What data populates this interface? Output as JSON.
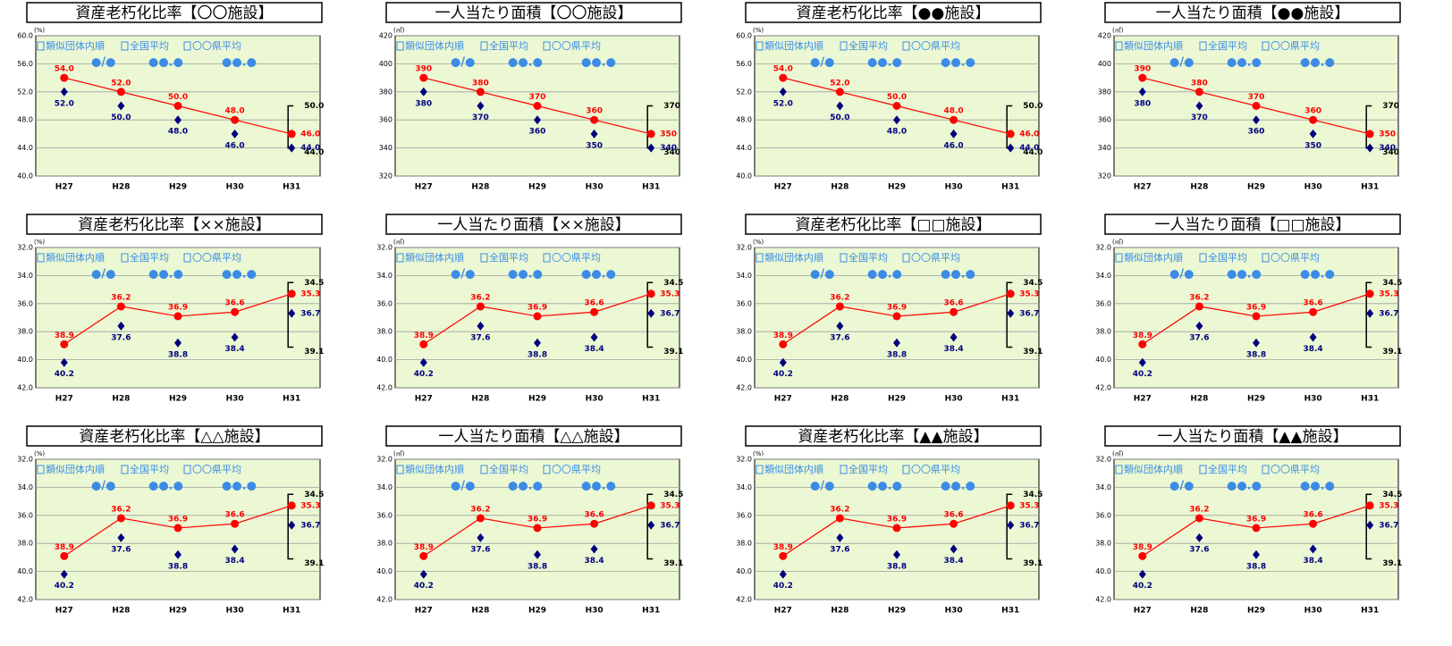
{
  "chart_data": [
    {
      "type": "line",
      "title": "資産老朽化比率【〇〇施設】",
      "unit": "(%)",
      "categories": [
        "H27",
        "H28",
        "H29",
        "H30",
        "H31"
      ],
      "ylim": [
        40,
        60
      ],
      "inverted": false,
      "yticks": [
        {
          "value": 40,
          "label": "40.0"
        },
        {
          "value": 44,
          "label": "44.0"
        },
        {
          "value": 48,
          "label": "48.0"
        },
        {
          "value": 52,
          "label": "52.0"
        },
        {
          "value": 56,
          "label": "56.0"
        },
        {
          "value": 60,
          "label": "60.0"
        }
      ],
      "grid": true,
      "legend": [
        {
          "label": "類似団体内順",
          "value": "●/●"
        },
        {
          "label": "全国平均",
          "value": "●●.●"
        },
        {
          "label": "〇〇県平均",
          "value": "●●.●"
        }
      ],
      "series": [
        {
          "color": "#ff0000",
          "values": [
            54,
            52,
            50,
            48,
            46
          ],
          "value_labels": [
            "54.0",
            "52.0",
            "50.0",
            "48.0",
            "46.0"
          ]
        },
        {
          "color": "#000080",
          "values": [
            52,
            50,
            48,
            46,
            44
          ],
          "value_labels": [
            "52.0",
            "50.0",
            "48.0",
            "46.0",
            "44.0"
          ]
        }
      ],
      "range": {
        "values": [
          50,
          44
        ],
        "value_labels": [
          "50.0",
          "44.0"
        ]
      }
    },
    {
      "type": "line",
      "title": "一人当たり面積【〇〇施設】",
      "unit": "(㎡)",
      "categories": [
        "H27",
        "H28",
        "H29",
        "H30",
        "H31"
      ],
      "ylim": [
        320,
        420
      ],
      "inverted": false,
      "yticks": [
        320,
        340,
        360,
        380,
        400,
        420
      ],
      "grid": true,
      "legend": [
        {
          "label": "類似団体内順",
          "value": "●/●"
        },
        {
          "label": "全国平均",
          "value": "●●.●"
        },
        {
          "label": "〇〇県平均",
          "value": "●●.●"
        }
      ],
      "series": [
        {
          "color": "#ff0000",
          "values": [
            390,
            380,
            370,
            360,
            350
          ]
        },
        {
          "color": "#000080",
          "values": [
            380,
            370,
            360,
            350,
            340
          ]
        }
      ],
      "range": {
        "values": [
          370,
          340
        ]
      }
    },
    {
      "type": "line",
      "title": "資産老朽化比率【●●施設】",
      "unit": "(%)",
      "categories": [
        "H27",
        "H28",
        "H29",
        "H30",
        "H31"
      ],
      "ylim": [
        40,
        60
      ],
      "inverted": false,
      "yticks": [
        {
          "value": 40,
          "label": "40.0"
        },
        {
          "value": 44,
          "label": "44.0"
        },
        {
          "value": 48,
          "label": "48.0"
        },
        {
          "value": 52,
          "label": "52.0"
        },
        {
          "value": 56,
          "label": "56.0"
        },
        {
          "value": 60,
          "label": "60.0"
        }
      ],
      "grid": true,
      "legend": [
        {
          "label": "類似団体内順",
          "value": "●/●"
        },
        {
          "label": "全国平均",
          "value": "●●.●"
        },
        {
          "label": "〇〇県平均",
          "value": "●●.●"
        }
      ],
      "series": [
        {
          "color": "#ff0000",
          "values": [
            54,
            52,
            50,
            48,
            46
          ],
          "value_labels": [
            "54.0",
            "52.0",
            "50.0",
            "48.0",
            "46.0"
          ]
        },
        {
          "color": "#000080",
          "values": [
            52,
            50,
            48,
            46,
            44
          ],
          "value_labels": [
            "52.0",
            "50.0",
            "48.0",
            "46.0",
            "44.0"
          ]
        }
      ],
      "range": {
        "values": [
          50,
          44
        ],
        "value_labels": [
          "50.0",
          "44.0"
        ]
      }
    },
    {
      "type": "line",
      "title": "一人当たり面積【●●施設】",
      "unit": "(㎡)",
      "categories": [
        "H27",
        "H28",
        "H29",
        "H30",
        "H31"
      ],
      "ylim": [
        320,
        420
      ],
      "inverted": false,
      "yticks": [
        320,
        340,
        360,
        380,
        400,
        420
      ],
      "grid": true,
      "legend": [
        {
          "label": "類似団体内順",
          "value": "●/●"
        },
        {
          "label": "全国平均",
          "value": "●●.●"
        },
        {
          "label": "〇〇県平均",
          "value": "●●.●"
        }
      ],
      "series": [
        {
          "color": "#ff0000",
          "values": [
            390,
            380,
            370,
            360,
            350
          ]
        },
        {
          "color": "#000080",
          "values": [
            380,
            370,
            360,
            350,
            340
          ]
        }
      ],
      "range": {
        "values": [
          370,
          340
        ]
      }
    },
    {
      "type": "line",
      "title": "資産老朽化比率【××施設】",
      "unit": "(%)",
      "categories": [
        "H27",
        "H28",
        "H29",
        "H30",
        "H31"
      ],
      "ylim": [
        32,
        42
      ],
      "inverted": true,
      "yticks": [
        {
          "value": 32,
          "label": "32.0"
        },
        {
          "value": 34,
          "label": "34.0"
        },
        {
          "value": 36,
          "label": "36.0"
        },
        {
          "value": 38,
          "label": "38.0"
        },
        {
          "value": 40,
          "label": "40.0"
        },
        {
          "value": 42,
          "label": "42.0"
        }
      ],
      "grid": true,
      "legend": [
        {
          "label": "類似団体内順",
          "value": "●/●"
        },
        {
          "label": "全国平均",
          "value": "●●.●"
        },
        {
          "label": "〇〇県平均",
          "value": "●●.●"
        }
      ],
      "series": [
        {
          "color": "#ff0000",
          "values": [
            38.9,
            36.2,
            36.9,
            36.6,
            35.3
          ]
        },
        {
          "color": "#000080",
          "values": [
            40.2,
            37.6,
            38.8,
            38.4,
            36.7
          ]
        }
      ],
      "range": {
        "values": [
          34.5,
          39.1
        ]
      }
    },
    {
      "type": "line",
      "title": "一人当たり面積【××施設】",
      "unit": "(㎡)",
      "categories": [
        "H27",
        "H28",
        "H29",
        "H30",
        "H31"
      ],
      "ylim": [
        32,
        42
      ],
      "inverted": true,
      "yticks": [
        {
          "value": 32,
          "label": "32.0"
        },
        {
          "value": 34,
          "label": "34.0"
        },
        {
          "value": 36,
          "label": "36.0"
        },
        {
          "value": 38,
          "label": "38.0"
        },
        {
          "value": 40,
          "label": "40.0"
        },
        {
          "value": 42,
          "label": "42.0"
        }
      ],
      "grid": true,
      "legend": [
        {
          "label": "類似団体内順",
          "value": "●/●"
        },
        {
          "label": "全国平均",
          "value": "●●.●"
        },
        {
          "label": "〇〇県平均",
          "value": "●●.●"
        }
      ],
      "series": [
        {
          "color": "#ff0000",
          "values": [
            38.9,
            36.2,
            36.9,
            36.6,
            35.3
          ]
        },
        {
          "color": "#000080",
          "values": [
            40.2,
            37.6,
            38.8,
            38.4,
            36.7
          ]
        }
      ],
      "range": {
        "values": [
          34.5,
          39.1
        ]
      }
    },
    {
      "type": "line",
      "title": "資産老朽化比率【□□施設】",
      "unit": "(%)",
      "categories": [
        "H27",
        "H28",
        "H29",
        "H30",
        "H31"
      ],
      "ylim": [
        32,
        42
      ],
      "inverted": true,
      "yticks": [
        {
          "value": 32,
          "label": "32.0"
        },
        {
          "value": 34,
          "label": "34.0"
        },
        {
          "value": 36,
          "label": "36.0"
        },
        {
          "value": 38,
          "label": "38.0"
        },
        {
          "value": 40,
          "label": "40.0"
        },
        {
          "value": 42,
          "label": "42.0"
        }
      ],
      "grid": true,
      "legend": [
        {
          "label": "類似団体内順",
          "value": "●/●"
        },
        {
          "label": "全国平均",
          "value": "●●.●"
        },
        {
          "label": "〇〇県平均",
          "value": "●●.●"
        }
      ],
      "series": [
        {
          "color": "#ff0000",
          "values": [
            38.9,
            36.2,
            36.9,
            36.6,
            35.3
          ]
        },
        {
          "color": "#000080",
          "values": [
            40.2,
            37.6,
            38.8,
            38.4,
            36.7
          ]
        }
      ],
      "range": {
        "values": [
          34.5,
          39.1
        ]
      }
    },
    {
      "type": "line",
      "title": "一人当たり面積【□□施設】",
      "unit": "(㎡)",
      "categories": [
        "H27",
        "H28",
        "H29",
        "H30",
        "H31"
      ],
      "ylim": [
        32,
        42
      ],
      "inverted": true,
      "yticks": [
        {
          "value": 32,
          "label": "32.0"
        },
        {
          "value": 34,
          "label": "34.0"
        },
        {
          "value": 36,
          "label": "36.0"
        },
        {
          "value": 38,
          "label": "38.0"
        },
        {
          "value": 40,
          "label": "40.0"
        },
        {
          "value": 42,
          "label": "42.0"
        }
      ],
      "grid": true,
      "legend": [
        {
          "label": "類似団体内順",
          "value": "●/●"
        },
        {
          "label": "全国平均",
          "value": "●●.●"
        },
        {
          "label": "〇〇県平均",
          "value": "●●.●"
        }
      ],
      "series": [
        {
          "color": "#ff0000",
          "values": [
            38.9,
            36.2,
            36.9,
            36.6,
            35.3
          ]
        },
        {
          "color": "#000080",
          "values": [
            40.2,
            37.6,
            38.8,
            38.4,
            36.7
          ]
        }
      ],
      "range": {
        "values": [
          34.5,
          39.1
        ]
      }
    },
    {
      "type": "line",
      "title": "資産老朽化比率【△△施設】",
      "unit": "(%)",
      "categories": [
        "H27",
        "H28",
        "H29",
        "H30",
        "H31"
      ],
      "ylim": [
        32,
        42
      ],
      "inverted": true,
      "yticks": [
        {
          "value": 32,
          "label": "32.0"
        },
        {
          "value": 34,
          "label": "34.0"
        },
        {
          "value": 36,
          "label": "36.0"
        },
        {
          "value": 38,
          "label": "38.0"
        },
        {
          "value": 40,
          "label": "40.0"
        },
        {
          "value": 42,
          "label": "42.0"
        }
      ],
      "grid": true,
      "legend": [
        {
          "label": "類似団体内順",
          "value": "●/●"
        },
        {
          "label": "全国平均",
          "value": "●●.●"
        },
        {
          "label": "〇〇県平均",
          "value": "●●.●"
        }
      ],
      "series": [
        {
          "color": "#ff0000",
          "values": [
            38.9,
            36.2,
            36.9,
            36.6,
            35.3
          ]
        },
        {
          "color": "#000080",
          "values": [
            40.2,
            37.6,
            38.8,
            38.4,
            36.7
          ]
        }
      ],
      "range": {
        "values": [
          34.5,
          39.1
        ]
      }
    },
    {
      "type": "line",
      "title": "一人当たり面積【△△施設】",
      "unit": "(㎡)",
      "categories": [
        "H27",
        "H28",
        "H29",
        "H30",
        "H31"
      ],
      "ylim": [
        32,
        42
      ],
      "inverted": true,
      "yticks": [
        {
          "value": 32,
          "label": "32.0"
        },
        {
          "value": 34,
          "label": "34.0"
        },
        {
          "value": 36,
          "label": "36.0"
        },
        {
          "value": 38,
          "label": "38.0"
        },
        {
          "value": 40,
          "label": "40.0"
        },
        {
          "value": 42,
          "label": "42.0"
        }
      ],
      "grid": true,
      "legend": [
        {
          "label": "類似団体内順",
          "value": "●/●"
        },
        {
          "label": "全国平均",
          "value": "●●.●"
        },
        {
          "label": "〇〇県平均",
          "value": "●●.●"
        }
      ],
      "series": [
        {
          "color": "#ff0000",
          "values": [
            38.9,
            36.2,
            36.9,
            36.6,
            35.3
          ]
        },
        {
          "color": "#000080",
          "values": [
            40.2,
            37.6,
            38.8,
            38.4,
            36.7
          ]
        }
      ],
      "range": {
        "values": [
          34.5,
          39.1
        ]
      }
    },
    {
      "type": "line",
      "title": "資産老朽化比率【▲▲施設】",
      "unit": "(%)",
      "categories": [
        "H27",
        "H28",
        "H29",
        "H30",
        "H31"
      ],
      "ylim": [
        32,
        42
      ],
      "inverted": true,
      "yticks": [
        {
          "value": 32,
          "label": "32.0"
        },
        {
          "value": 34,
          "label": "34.0"
        },
        {
          "value": 36,
          "label": "36.0"
        },
        {
          "value": 38,
          "label": "38.0"
        },
        {
          "value": 40,
          "label": "40.0"
        },
        {
          "value": 42,
          "label": "42.0"
        }
      ],
      "grid": true,
      "legend": [
        {
          "label": "類似団体内順",
          "value": "●/●"
        },
        {
          "label": "全国平均",
          "value": "●●.●"
        },
        {
          "label": "〇〇県平均",
          "value": "●●.●"
        }
      ],
      "series": [
        {
          "color": "#ff0000",
          "values": [
            38.9,
            36.2,
            36.9,
            36.6,
            35.3
          ]
        },
        {
          "color": "#000080",
          "values": [
            40.2,
            37.6,
            38.8,
            38.4,
            36.7
          ]
        }
      ],
      "range": {
        "values": [
          34.5,
          39.1
        ]
      }
    },
    {
      "type": "line",
      "title": "一人当たり面積【▲▲施設】",
      "unit": "(㎡)",
      "categories": [
        "H27",
        "H28",
        "H29",
        "H30",
        "H31"
      ],
      "ylim": [
        32,
        42
      ],
      "inverted": true,
      "yticks": [
        {
          "value": 32,
          "label": "32.0"
        },
        {
          "value": 34,
          "label": "34.0"
        },
        {
          "value": 36,
          "label": "36.0"
        },
        {
          "value": 38,
          "label": "38.0"
        },
        {
          "value": 40,
          "label": "40.0"
        },
        {
          "value": 42,
          "label": "42.0"
        }
      ],
      "grid": true,
      "legend": [
        {
          "label": "類似団体内順",
          "value": "●/●"
        },
        {
          "label": "全国平均",
          "value": "●●.●"
        },
        {
          "label": "〇〇県平均",
          "value": "●●.●"
        }
      ],
      "series": [
        {
          "color": "#ff0000",
          "values": [
            38.9,
            36.2,
            36.9,
            36.6,
            35.3
          ]
        },
        {
          "color": "#000080",
          "values": [
            40.2,
            37.6,
            38.8,
            38.4,
            36.7
          ]
        }
      ],
      "range": {
        "values": [
          34.5,
          39.1
        ]
      }
    }
  ]
}
